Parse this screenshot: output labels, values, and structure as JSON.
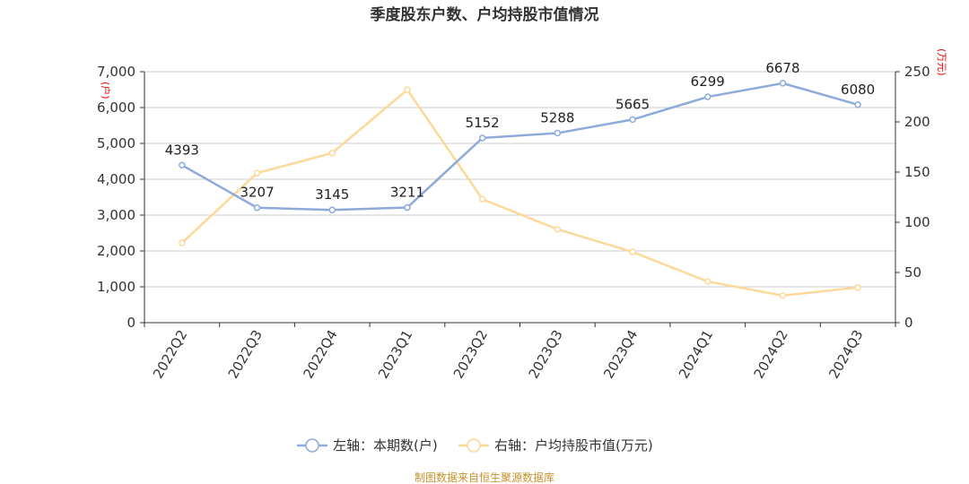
{
  "chart_data": {
    "type": "line",
    "title": "季度股东户数、户均持股市值情况",
    "categories": [
      "2022Q2",
      "2022Q3",
      "2022Q4",
      "2023Q1",
      "2023Q2",
      "2023Q3",
      "2023Q4",
      "2024Q1",
      "2024Q2",
      "2024Q3"
    ],
    "left_axis": {
      "unit": "(户)",
      "ylim": [
        0,
        7000
      ],
      "ticks": [
        "0",
        "1,000",
        "2,000",
        "3,000",
        "4,000",
        "5,000",
        "6,000",
        "7,000"
      ]
    },
    "right_axis": {
      "unit": "(万元)",
      "ylim": [
        0,
        250
      ],
      "ticks": [
        "0",
        "50",
        "100",
        "150",
        "200",
        "250"
      ]
    },
    "grid": true,
    "legend_position": "bottom",
    "series": [
      {
        "name": "左轴：本期数(户)",
        "axis": "left",
        "color": "#8eaadb",
        "values": [
          4393,
          3207,
          3145,
          3211,
          5152,
          5288,
          5665,
          6299,
          6678,
          6080
        ],
        "labels": true
      },
      {
        "name": "右轴：户均持股市值(万元)",
        "axis": "right",
        "color": "#fdd999",
        "values": [
          79.5,
          149,
          169,
          232,
          123,
          93,
          70.5,
          41,
          27,
          35
        ],
        "labels": false
      }
    ],
    "source": "制图数据来自恒生聚源数据库"
  }
}
